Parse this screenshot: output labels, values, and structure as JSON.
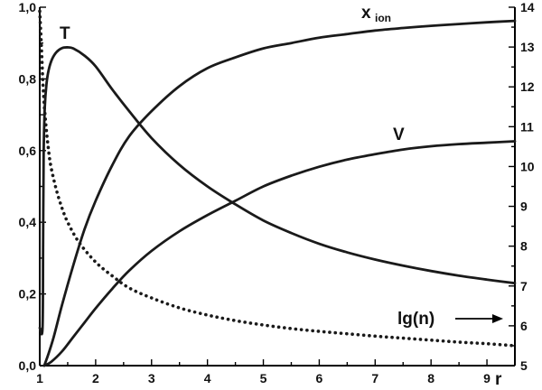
{
  "chart_data": {
    "type": "line",
    "x_axis": {
      "label": "r",
      "range": [
        1,
        9.5
      ],
      "ticks": [
        1,
        2,
        3,
        4,
        5,
        6,
        7,
        8,
        9
      ],
      "tick_labels": [
        "1",
        "2",
        "3",
        "4",
        "5",
        "6",
        "7",
        "8",
        "9"
      ]
    },
    "y_left": {
      "range": [
        0,
        1
      ],
      "ticks": [
        0,
        0.2,
        0.4,
        0.6,
        0.8,
        1.0
      ],
      "tick_labels": [
        "0,0",
        "0,2",
        "0,4",
        "0,6",
        "0,8",
        "1,0"
      ]
    },
    "y_right": {
      "range": [
        5,
        14
      ],
      "ticks": [
        5,
        6,
        7,
        8,
        9,
        10,
        11,
        12,
        13,
        14
      ],
      "tick_labels": [
        "5",
        "6",
        "7",
        "8",
        "9",
        "10",
        "11",
        "12",
        "13",
        "14"
      ]
    },
    "series": [
      {
        "name": "T",
        "label_main": "T",
        "axis": "left",
        "style": "solid",
        "x": [
          1.0,
          1.05,
          1.06,
          1.07,
          1.09,
          1.12,
          1.16,
          1.22,
          1.3,
          1.4,
          1.5,
          1.6,
          1.8,
          2.0,
          2.3,
          2.6,
          3.0,
          3.5,
          4.0,
          4.5,
          5.0,
          5.5,
          6.0,
          6.5,
          7.0,
          7.5,
          8.0,
          8.5,
          9.0,
          9.5
        ],
        "y": [
          0.105,
          0.105,
          0.34,
          0.59,
          0.72,
          0.785,
          0.825,
          0.855,
          0.875,
          0.886,
          0.888,
          0.885,
          0.865,
          0.835,
          0.77,
          0.71,
          0.635,
          0.56,
          0.5,
          0.45,
          0.405,
          0.37,
          0.34,
          0.316,
          0.296,
          0.279,
          0.264,
          0.251,
          0.24,
          0.23
        ]
      },
      {
        "name": "x_ion",
        "label_main": "x",
        "label_sub": "ion",
        "axis": "left",
        "style": "solid",
        "x": [
          1.08,
          1.15,
          1.25,
          1.4,
          1.6,
          1.8,
          2.0,
          2.3,
          2.6,
          3.0,
          3.5,
          4.0,
          4.5,
          5.0,
          5.5,
          6.0,
          6.5,
          7.0,
          7.5,
          8.0,
          8.5,
          9.0,
          9.5
        ],
        "y": [
          0.0,
          0.03,
          0.08,
          0.17,
          0.28,
          0.38,
          0.46,
          0.56,
          0.64,
          0.71,
          0.78,
          0.83,
          0.86,
          0.885,
          0.9,
          0.915,
          0.925,
          0.935,
          0.942,
          0.948,
          0.953,
          0.958,
          0.962
        ]
      },
      {
        "name": "V",
        "label_main": "V",
        "axis": "left",
        "style": "solid",
        "x": [
          1.08,
          1.2,
          1.4,
          1.6,
          1.8,
          2.0,
          2.3,
          2.6,
          3.0,
          3.5,
          4.0,
          4.5,
          5.0,
          5.5,
          6.0,
          6.5,
          7.0,
          7.5,
          8.0,
          8.5,
          9.0,
          9.5
        ],
        "y": [
          0.0,
          0.01,
          0.04,
          0.08,
          0.12,
          0.16,
          0.215,
          0.265,
          0.32,
          0.375,
          0.42,
          0.46,
          0.5,
          0.53,
          0.555,
          0.575,
          0.59,
          0.603,
          0.612,
          0.618,
          0.622,
          0.626
        ]
      },
      {
        "name": "lg(n)",
        "label_main": "lg(n)",
        "axis": "right",
        "style": "dotted",
        "x": [
          1.0,
          1.03,
          1.06,
          1.1,
          1.15,
          1.2,
          1.3,
          1.4,
          1.5,
          1.7,
          2.0,
          2.3,
          2.6,
          3.0,
          3.5,
          4.0,
          4.5,
          5.0,
          5.5,
          6.0,
          6.5,
          7.0,
          7.5,
          8.0,
          8.5,
          9.0,
          9.5
        ],
        "y": [
          13.9,
          13.0,
          12.0,
          11.2,
          10.5,
          10.0,
          9.4,
          8.95,
          8.6,
          8.1,
          7.6,
          7.25,
          6.95,
          6.7,
          6.45,
          6.27,
          6.13,
          6.02,
          5.93,
          5.86,
          5.8,
          5.74,
          5.69,
          5.64,
          5.59,
          5.55,
          5.5
        ]
      }
    ],
    "grid": false,
    "legend": "none",
    "annotation": {
      "text": "lg(n)",
      "arrow": "right"
    }
  }
}
